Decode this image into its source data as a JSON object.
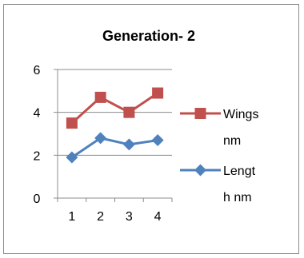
{
  "chart_data": {
    "type": "line",
    "title": "Generation- 2",
    "x": [
      "1",
      "2",
      "3",
      "4"
    ],
    "ylim": [
      0,
      6
    ],
    "yticks": [
      "0",
      "2",
      "4",
      "6"
    ],
    "grid": true,
    "legend_position": "right",
    "series": [
      {
        "name_lines": [
          "Wings",
          "nm"
        ],
        "values": [
          3.5,
          4.7,
          4.0,
          4.9
        ],
        "color": "#c0504d",
        "marker": "square"
      },
      {
        "name_lines": [
          "Lengt",
          "h nm"
        ],
        "values": [
          1.9,
          2.8,
          2.5,
          2.7
        ],
        "color": "#4f81bd",
        "marker": "diamond"
      }
    ]
  }
}
